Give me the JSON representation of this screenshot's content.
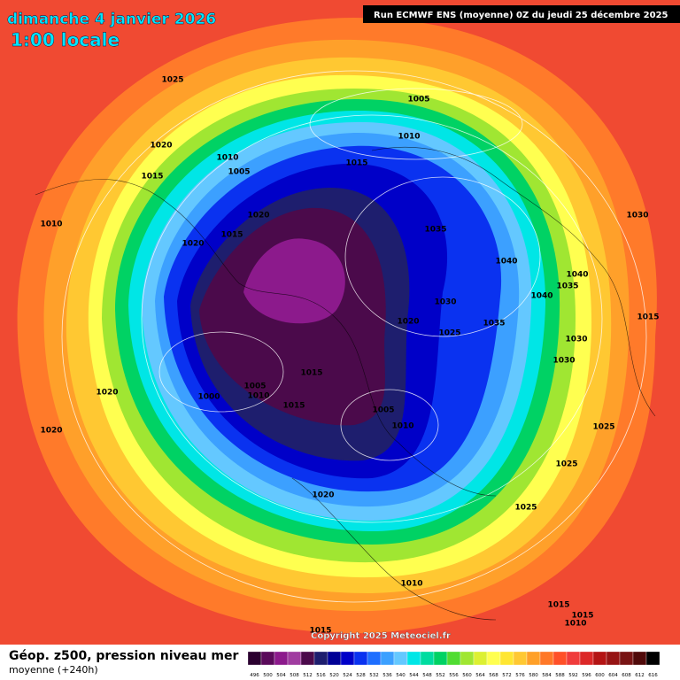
{
  "header": {
    "date": "dimanche 4 janvier 2026",
    "time": "1:00 locale",
    "run": "Run ECMWF ENS (moyenne) 0Z du jeudi 25 décembre 2025"
  },
  "isobar_labels": [
    "1025",
    "1005",
    "1010",
    "1020",
    "1010",
    "1005",
    "1015",
    "1015",
    "1020",
    "1010",
    "1035",
    "1030",
    "1015",
    "1020",
    "1040",
    "1040",
    "1035",
    "1040",
    "1030",
    "1015",
    "1020",
    "1035",
    "1025",
    "1030",
    "1030",
    "1015",
    "1005",
    "1010",
    "1020",
    "1000",
    "1015",
    "1005",
    "1010",
    "1020",
    "1025",
    "1025",
    "1020",
    "1025",
    "1010",
    "1015",
    "1015",
    "1010",
    "1015"
  ],
  "copyright": "Copyright 2025 Meteociel.fr",
  "footer": {
    "title": "Géop. z500, pression niveau mer",
    "subtitle": "moyenne  (+240h)"
  },
  "scale": {
    "values": [
      "496",
      "500",
      "504",
      "508",
      "512",
      "516",
      "520",
      "524",
      "528",
      "532",
      "536",
      "540",
      "544",
      "548",
      "552",
      "556",
      "560",
      "564",
      "568",
      "572",
      "576",
      "580",
      "584",
      "588",
      "592",
      "596",
      "600",
      "604",
      "608",
      "612",
      "616"
    ],
    "colors": [
      "#2b0030",
      "#5a0a5a",
      "#8c1a8c",
      "#a03ca0",
      "#4b0a4b",
      "#1e1e6e",
      "#000096",
      "#0000c8",
      "#0a32f0",
      "#1e6eff",
      "#3ca0ff",
      "#64c8ff",
      "#00e6e6",
      "#00dca0",
      "#00d264",
      "#50dc32",
      "#a0e632",
      "#dcf032",
      "#ffff50",
      "#ffe632",
      "#ffc832",
      "#ffa028",
      "#ff7828",
      "#ff5028",
      "#f03c3c",
      "#dc2828",
      "#b41414",
      "#961414",
      "#781414",
      "#500a0a",
      "#000000"
    ]
  }
}
